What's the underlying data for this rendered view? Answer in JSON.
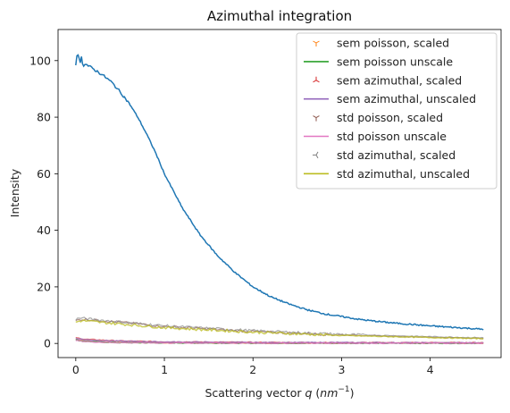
{
  "chart_data": {
    "type": "line",
    "title": "Azimuthal integration",
    "xlabel": "Scattering vector q (nm^-1)",
    "xlabel_main": "Scattering vector ",
    "xlabel_var": "q",
    "xlabel_unit_open": " (",
    "xlabel_unit": "nm",
    "xlabel_exp": "−1",
    "xlabel_unit_close": ")",
    "ylabel": "Intensity",
    "xlim": [
      -0.2,
      4.8
    ],
    "ylim": [
      -5,
      111
    ],
    "xticks": [
      0,
      1,
      2,
      3,
      4
    ],
    "yticks": [
      0,
      20,
      40,
      60,
      80,
      100
    ],
    "grid": false,
    "legend_position": "top-right",
    "main_series": {
      "color": "#1f77b4",
      "x": [
        0.0,
        0.05,
        0.1,
        0.2,
        0.3,
        0.4,
        0.5,
        0.6,
        0.7,
        0.8,
        0.9,
        1.0,
        1.2,
        1.4,
        1.6,
        1.8,
        2.0,
        2.2,
        2.4,
        2.6,
        2.8,
        3.0,
        3.2,
        3.4,
        3.6,
        3.8,
        4.0,
        4.2,
        4.4,
        4.6
      ],
      "y": [
        100,
        101,
        99,
        97,
        95,
        92.5,
        89,
        85,
        80,
        74,
        67.5,
        60,
        48,
        38.5,
        31,
        25,
        20,
        16.5,
        14,
        12,
        10.5,
        9.5,
        8.5,
        7.8,
        7.2,
        6.7,
        6.2,
        5.8,
        5.4,
        5.0
      ]
    },
    "series": [
      {
        "name": "sem poisson, scaled",
        "kind": "marker",
        "marker": "tri_down",
        "color": "#ff7f0e",
        "x": [
          0.0,
          0.05,
          0.1,
          0.3,
          0.5,
          1.0,
          2.0,
          3.0,
          4.0,
          4.6
        ],
        "y": [
          1.5,
          1.3,
          1.0,
          0.6,
          0.4,
          0.2,
          0.1,
          0.1,
          0.1,
          0.1
        ]
      },
      {
        "name": "sem poisson unscale",
        "kind": "line",
        "color": "#2ca02c",
        "x": [
          0.0,
          0.05,
          0.1,
          0.3,
          0.5,
          1.0,
          2.0,
          3.0,
          4.0,
          4.6
        ],
        "y": [
          1.2,
          1.0,
          0.8,
          0.5,
          0.3,
          0.2,
          0.1,
          0.1,
          0.1,
          0.1
        ]
      },
      {
        "name": "sem azimuthal, scaled",
        "kind": "marker",
        "marker": "tri_up",
        "color": "#d62728",
        "x": [
          0.0,
          0.05,
          0.1,
          0.3,
          0.5,
          1.0,
          2.0,
          3.0,
          4.0,
          4.6
        ],
        "y": [
          2.0,
          1.8,
          1.5,
          1.2,
          0.9,
          0.6,
          0.4,
          0.3,
          0.3,
          0.3
        ]
      },
      {
        "name": "sem azimuthal, unscaled",
        "kind": "line",
        "color": "#9467bd",
        "x": [
          0.0,
          0.05,
          0.1,
          0.3,
          0.5,
          1.0,
          2.0,
          3.0,
          4.0,
          4.6
        ],
        "y": [
          1.8,
          1.6,
          1.3,
          1.0,
          0.8,
          0.5,
          0.3,
          0.3,
          0.2,
          0.2
        ]
      },
      {
        "name": "std poisson, scaled",
        "kind": "marker",
        "marker": "tri_down",
        "color": "#8c564b",
        "x": [
          0.0,
          0.05,
          0.1,
          0.3,
          0.5,
          1.0,
          2.0,
          3.0,
          4.0,
          4.6
        ],
        "y": [
          8.0,
          8.5,
          8.5,
          8.0,
          7.5,
          6.0,
          4.2,
          3.0,
          2.2,
          1.8
        ]
      },
      {
        "name": "std poisson unscale",
        "kind": "line",
        "color": "#e377c2",
        "x": [
          0.0,
          0.05,
          0.1,
          0.3,
          0.5,
          1.0,
          2.0,
          3.0,
          4.0,
          4.6
        ],
        "y": [
          1.0,
          0.9,
          0.7,
          0.4,
          0.3,
          0.2,
          0.1,
          0.1,
          0.1,
          0.1
        ]
      },
      {
        "name": "std azimuthal, scaled",
        "kind": "marker",
        "marker": "tri_left",
        "color": "#7f7f7f",
        "x": [
          0.0,
          0.05,
          0.1,
          0.3,
          0.5,
          1.0,
          2.0,
          3.0,
          4.0,
          4.6
        ],
        "y": [
          8.5,
          9.0,
          8.8,
          8.2,
          7.6,
          6.2,
          4.5,
          3.2,
          2.4,
          2.0
        ]
      },
      {
        "name": "std azimuthal, unscaled",
        "kind": "line",
        "color": "#bcbd22",
        "x": [
          0.0,
          0.05,
          0.1,
          0.3,
          0.5,
          1.0,
          2.0,
          3.0,
          4.0,
          4.6
        ],
        "y": [
          7.5,
          8.0,
          8.0,
          7.4,
          6.9,
          5.6,
          4.0,
          2.8,
          2.1,
          1.7
        ]
      }
    ]
  }
}
